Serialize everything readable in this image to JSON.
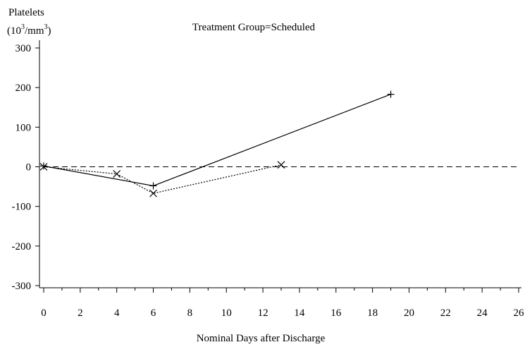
{
  "chart_data": {
    "type": "line",
    "title": "Treatment Group=Scheduled",
    "ylabel_line1": "Platelets",
    "ylabel_line2_base": "(10",
    "ylabel_line2_sup": "3",
    "ylabel_line2_rest": "/mm",
    "ylabel_line2_sup2": "3",
    "ylabel_line2_end": ")",
    "xlabel": "Nominal Days after Discharge",
    "xlim": [
      0,
      26
    ],
    "ylim": [
      -300,
      300
    ],
    "x_ticks": [
      0,
      2,
      4,
      6,
      8,
      10,
      12,
      14,
      16,
      18,
      20,
      22,
      24,
      26
    ],
    "y_ticks": [
      300,
      200,
      100,
      0,
      -100,
      -200,
      -300
    ],
    "reference_line_y": 0,
    "series": [
      {
        "style": "solid",
        "marker": "plus",
        "points": [
          [
            0,
            2
          ],
          [
            6,
            -48
          ],
          [
            19,
            183
          ]
        ]
      },
      {
        "style": "dotted",
        "marker": "x",
        "points": [
          [
            0,
            0
          ],
          [
            4,
            -18
          ],
          [
            6,
            -67
          ],
          [
            13,
            5
          ]
        ]
      }
    ]
  }
}
